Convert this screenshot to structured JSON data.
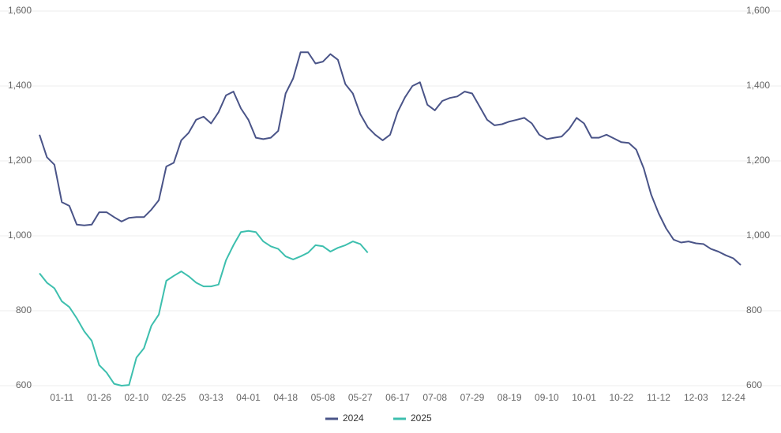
{
  "chart_data": {
    "type": "line",
    "categories": [
      null,
      null,
      null,
      "01-11",
      null,
      null,
      null,
      null,
      "01-26",
      null,
      null,
      null,
      null,
      "02-10",
      null,
      null,
      null,
      null,
      "02-25",
      null,
      null,
      null,
      null,
      "03-13",
      null,
      null,
      null,
      null,
      "04-01",
      null,
      null,
      null,
      null,
      "04-18",
      null,
      null,
      null,
      null,
      "05-08",
      null,
      null,
      null,
      null,
      "05-27",
      null,
      null,
      null,
      null,
      "06-17",
      null,
      null,
      null,
      null,
      "07-08",
      null,
      null,
      null,
      null,
      "07-29",
      null,
      null,
      null,
      null,
      "08-19",
      null,
      null,
      null,
      null,
      "09-10",
      null,
      null,
      null,
      null,
      "10-01",
      null,
      null,
      null,
      null,
      "10-22",
      null,
      null,
      null,
      null,
      "11-12",
      null,
      null,
      null,
      null,
      "12-03",
      null,
      null,
      null,
      null,
      "12-24",
      null
    ],
    "series": [
      {
        "name": "2024",
        "color": "#4a5488",
        "values": [
          1270,
          1210,
          1190,
          1090,
          1080,
          1030,
          1028,
          1030,
          1063,
          1063,
          1050,
          1038,
          1048,
          1050,
          1050,
          1070,
          1095,
          1185,
          1195,
          1255,
          1275,
          1310,
          1318,
          1300,
          1330,
          1375,
          1385,
          1340,
          1310,
          1262,
          1258,
          1262,
          1280,
          1380,
          1420,
          1490,
          1490,
          1460,
          1465,
          1485,
          1470,
          1405,
          1380,
          1325,
          1290,
          1270,
          1255,
          1270,
          1330,
          1370,
          1400,
          1410,
          1350,
          1335,
          1360,
          1368,
          1372,
          1385,
          1380,
          1345,
          1310,
          1295,
          1298,
          1305,
          1310,
          1315,
          1300,
          1270,
          1258,
          1262,
          1265,
          1285,
          1315,
          1300,
          1262,
          1262,
          1270,
          1260,
          1250,
          1248,
          1230,
          1180,
          1110,
          1060,
          1020,
          990,
          982,
          985,
          980,
          978,
          965,
          958,
          948,
          940,
          922
        ]
      },
      {
        "name": "2025",
        "color": "#3dbfae",
        "axis": "y2",
        "values": [
          900,
          875,
          860,
          825,
          810,
          780,
          745,
          720,
          655,
          635,
          605,
          600,
          602,
          675,
          700,
          760,
          790,
          880,
          893,
          905,
          892,
          875,
          865,
          865,
          870,
          935,
          975,
          1010,
          1013,
          1010,
          985,
          972,
          965,
          945,
          937,
          945,
          955,
          975,
          972,
          958,
          968,
          975,
          985,
          978,
          955,
          null,
          null,
          null,
          null,
          null,
          null,
          null,
          null,
          null,
          null,
          null,
          null,
          null,
          null,
          null,
          null,
          null,
          null,
          null,
          null,
          null,
          null,
          null,
          null,
          null,
          null,
          null,
          null,
          null,
          null,
          null,
          null,
          null,
          null,
          null,
          null,
          null,
          null,
          null,
          null,
          null,
          null,
          null,
          null,
          null,
          null,
          null,
          null,
          null,
          null
        ]
      }
    ],
    "ylim": [
      600,
      1600
    ],
    "yticks": [
      600,
      800,
      {
        "value": 1000,
        "label": "1,000"
      },
      {
        "value": 1200,
        "label": "1,200"
      },
      {
        "value": 1400,
        "label": "1,400"
      },
      {
        "value": 1600,
        "label": "1,600"
      }
    ],
    "y2lim": [
      600,
      1600
    ],
    "y2ticks": [
      600,
      800,
      {
        "value": 1000,
        "label": "1,000"
      },
      {
        "value": 1200,
        "label": "1,200"
      },
      {
        "value": 1400,
        "label": "1,400"
      },
      {
        "value": 1600,
        "label": "1,600"
      }
    ],
    "grid": true,
    "legend": "bottom"
  }
}
